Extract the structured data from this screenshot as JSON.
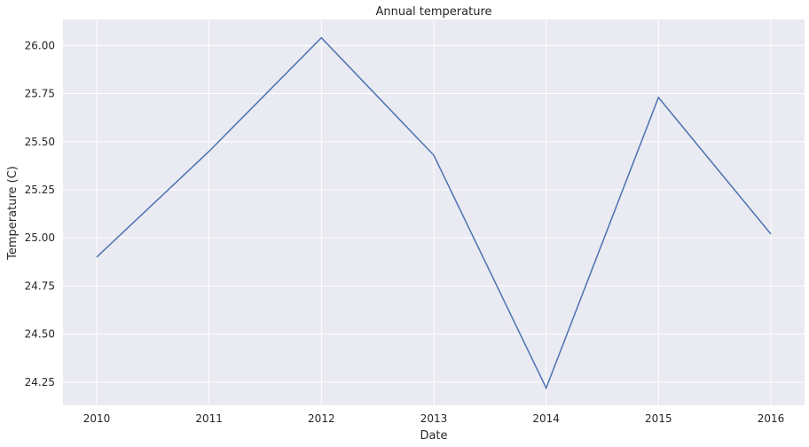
{
  "chart_data": {
    "type": "line",
    "title": "Annual temperature",
    "xlabel": "Date",
    "ylabel": "Temperature (C)",
    "x": [
      2010,
      2011,
      2012,
      2013,
      2014,
      2015,
      2016
    ],
    "xticks": [
      "2010",
      "2011",
      "2012",
      "2013",
      "2014",
      "2015",
      "2016"
    ],
    "yticks": [
      "24.25",
      "24.50",
      "24.75",
      "25.00",
      "25.25",
      "25.50",
      "25.75",
      "26.00"
    ],
    "ytick_values": [
      24.25,
      24.5,
      24.75,
      25.0,
      25.25,
      25.5,
      25.75,
      26.0
    ],
    "series": [
      {
        "values": [
          24.9,
          25.45,
          26.04,
          25.43,
          24.22,
          25.73,
          25.02
        ]
      }
    ],
    "xlim": [
      2009.7,
      2016.3
    ],
    "ylim": [
      24.13,
      26.135
    ],
    "grid": true,
    "colors": {
      "line": "#4c72b0",
      "background": "#eaeaf2",
      "grid": "#ffffff"
    }
  }
}
